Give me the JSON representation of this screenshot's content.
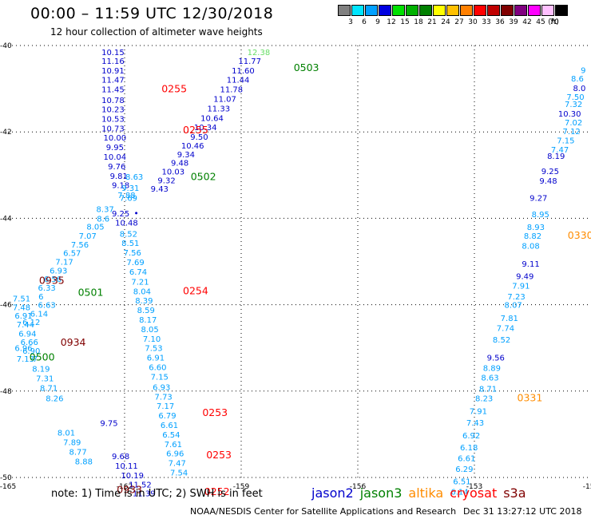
{
  "header": {
    "title": "00:00 – 11:59 UTC 12/30/2018",
    "subtitle": "12 hour collection of altimeter wave heights"
  },
  "color_scale": {
    "unit": "(ft)",
    "steps": [
      {
        "label": "3",
        "color": "#808080"
      },
      {
        "label": "6",
        "color": "#00e5ff"
      },
      {
        "label": "9",
        "color": "#00a0ff"
      },
      {
        "label": "12",
        "color": "#0000e0"
      },
      {
        "label": "15",
        "color": "#00e000"
      },
      {
        "label": "18",
        "color": "#00b000"
      },
      {
        "label": "21",
        "color": "#008000"
      },
      {
        "label": "24",
        "color": "#ffff00"
      },
      {
        "label": "27",
        "color": "#ffc000"
      },
      {
        "label": "30",
        "color": "#ff8000"
      },
      {
        "label": "33",
        "color": "#ff0000"
      },
      {
        "label": "36",
        "color": "#c00000"
      },
      {
        "label": "39",
        "color": "#800000"
      },
      {
        "label": "42",
        "color": "#800080"
      },
      {
        "label": "45",
        "color": "#ff00ff"
      },
      {
        "label": "70",
        "color": "#ffc0ff"
      },
      {
        "label": "",
        "color": "#000000"
      }
    ]
  },
  "footer": {
    "note": "note: 1) Time is in UTC; 2) SWH is in feet",
    "credit": "NOAA/NESDIS Center for Satellite Applications and Research",
    "timestamp": "Dec 31 13:27:12 UTC 2018",
    "satellites": [
      {
        "name": "jason2",
        "color": "#0000cc"
      },
      {
        "name": "jason3",
        "color": "#008000"
      },
      {
        "name": "altika",
        "color": "#ff8c00"
      },
      {
        "name": "cryosat",
        "color": "#ff0000"
      },
      {
        "name": "s3a",
        "color": "#800000"
      }
    ]
  },
  "chart_data": {
    "type": "scatter",
    "xlim": [
      -165,
      -150
    ],
    "ylim": [
      -50,
      -40
    ],
    "x_ticks": [
      "-165",
      "-162",
      "-159",
      "-156",
      "-153",
      "-150"
    ],
    "y_ticks": [
      "-40",
      "-42",
      "-44",
      "-46",
      "-48",
      "-50"
    ],
    "grid": true,
    "colors": {
      "jason2": "#0000cc",
      "jason3": "#008000",
      "altika": "#ff8c00",
      "cryosat": "#ff0000",
      "s3a": "#800000",
      "light": "#00a0ff",
      "pale": "#66dd66"
    },
    "points": [
      {
        "lon": -162.3,
        "lat": -40.15,
        "v": "10.15",
        "c": "jason2"
      },
      {
        "lon": -162.3,
        "lat": -40.35,
        "v": "11.16",
        "c": "jason2"
      },
      {
        "lon": -162.3,
        "lat": -40.57,
        "v": "10.91",
        "c": "jason2"
      },
      {
        "lon": -162.3,
        "lat": -40.79,
        "v": "11.47",
        "c": "jason2"
      },
      {
        "lon": -162.3,
        "lat": -41.01,
        "v": "11.45",
        "c": "jason2"
      },
      {
        "lon": -162.3,
        "lat": -41.26,
        "v": "10.78",
        "c": "jason2"
      },
      {
        "lon": -162.3,
        "lat": -41.47,
        "v": "10.23",
        "c": "jason2"
      },
      {
        "lon": -162.3,
        "lat": -41.69,
        "v": "10.53",
        "c": "jason2"
      },
      {
        "lon": -162.3,
        "lat": -41.91,
        "v": "10.73",
        "c": "jason2"
      },
      {
        "lon": -162.25,
        "lat": -42.13,
        "v": "10.00",
        "c": "jason2"
      },
      {
        "lon": -162.25,
        "lat": -42.35,
        "v": "9.95",
        "c": "jason2"
      },
      {
        "lon": -162.25,
        "lat": -42.57,
        "v": "10.04",
        "c": "jason2"
      },
      {
        "lon": -162.2,
        "lat": -42.79,
        "v": "9.76",
        "c": "jason2"
      },
      {
        "lon": -162.15,
        "lat": -43.01,
        "v": "9.81",
        "c": "jason2"
      },
      {
        "lon": -162.1,
        "lat": -43.23,
        "v": "9.18",
        "c": "jason2"
      },
      {
        "lon": -162.1,
        "lat": -43.88,
        "v": "9.25",
        "c": "jason2"
      },
      {
        "lon": -161.95,
        "lat": -44.09,
        "v": "10.48",
        "c": "jason2"
      },
      {
        "lon": -158.78,
        "lat": -40.35,
        "v": "11.77",
        "c": "jason2"
      },
      {
        "lon": -158.95,
        "lat": -40.57,
        "v": "11.60",
        "c": "jason2"
      },
      {
        "lon": -159.08,
        "lat": -40.79,
        "v": "11.44",
        "c": "jason2"
      },
      {
        "lon": -159.25,
        "lat": -41.01,
        "v": "11.78",
        "c": "jason2"
      },
      {
        "lon": -159.42,
        "lat": -41.23,
        "v": "11.07",
        "c": "jason2"
      },
      {
        "lon": -159.58,
        "lat": -41.45,
        "v": "11.33",
        "c": "jason2"
      },
      {
        "lon": -159.75,
        "lat": -41.67,
        "v": "10.64",
        "c": "jason2"
      },
      {
        "lon": -159.92,
        "lat": -41.89,
        "v": "10.34",
        "c": "jason2"
      },
      {
        "lon": -160.08,
        "lat": -42.11,
        "v": "9.50",
        "c": "jason2"
      },
      {
        "lon": -160.25,
        "lat": -42.31,
        "v": "10.46",
        "c": "jason2"
      },
      {
        "lon": -160.42,
        "lat": -42.51,
        "v": "9.34",
        "c": "jason2"
      },
      {
        "lon": -160.58,
        "lat": -42.71,
        "v": "9.48",
        "c": "jason2"
      },
      {
        "lon": -160.75,
        "lat": -42.91,
        "v": "10.03",
        "c": "jason2"
      },
      {
        "lon": -160.92,
        "lat": -43.11,
        "v": "9.32",
        "c": "jason2"
      },
      {
        "lon": -161.1,
        "lat": -43.31,
        "v": "9.43",
        "c": "jason2"
      },
      {
        "lon": -161.7,
        "lat": -43.88,
        "v": "",
        "c": "jason2"
      },
      {
        "lon": -162.4,
        "lat": -48.73,
        "v": "9.75",
        "c": "jason2"
      },
      {
        "lon": -162.1,
        "lat": -49.5,
        "v": "9.68",
        "c": "jason2"
      },
      {
        "lon": -161.95,
        "lat": -49.72,
        "v": "10.11",
        "c": "jason2"
      },
      {
        "lon": -161.8,
        "lat": -49.94,
        "v": "10.19",
        "c": "jason2"
      },
      {
        "lon": -161.6,
        "lat": -50.16,
        "v": "11.52",
        "c": "jason2"
      },
      {
        "lon": -161.5,
        "lat": -50.36,
        "v": "11.39",
        "c": "jason2"
      },
      {
        "lon": -150.3,
        "lat": -40.98,
        "v": "8.0",
        "c": "jason2"
      },
      {
        "lon": -150.55,
        "lat": -41.57,
        "v": "10.30",
        "c": "jason2"
      },
      {
        "lon": -150.9,
        "lat": -42.55,
        "v": "8.19",
        "c": "jason2"
      },
      {
        "lon": -151.05,
        "lat": -42.9,
        "v": "9.25",
        "c": "jason2"
      },
      {
        "lon": -151.1,
        "lat": -43.12,
        "v": "9.48",
        "c": "jason2"
      },
      {
        "lon": -151.35,
        "lat": -43.52,
        "v": "9.27",
        "c": "jason2"
      },
      {
        "lon": -151.55,
        "lat": -45.05,
        "v": "9.11",
        "c": "jason2"
      },
      {
        "lon": -151.7,
        "lat": -45.33,
        "v": "9.49",
        "c": "jason2"
      },
      {
        "lon": -152.45,
        "lat": -47.22,
        "v": "9.56",
        "c": "jason2"
      },
      {
        "lon": -161.9,
        "lat": -44.35,
        "v": "8.52",
        "c": "light"
      },
      {
        "lon": -161.85,
        "lat": -44.57,
        "v": "8.51",
        "c": "light"
      },
      {
        "lon": -161.8,
        "lat": -44.79,
        "v": "7.56",
        "c": "light"
      },
      {
        "lon": -161.72,
        "lat": -45.01,
        "v": "7.69",
        "c": "light"
      },
      {
        "lon": -161.65,
        "lat": -45.23,
        "v": "6.74",
        "c": "light"
      },
      {
        "lon": -161.6,
        "lat": -45.46,
        "v": "7.21",
        "c": "light"
      },
      {
        "lon": -161.55,
        "lat": -45.68,
        "v": "8.04",
        "c": "light"
      },
      {
        "lon": -161.5,
        "lat": -45.9,
        "v": "8.39",
        "c": "light"
      },
      {
        "lon": -161.45,
        "lat": -46.12,
        "v": "8.59",
        "c": "light"
      },
      {
        "lon": -161.4,
        "lat": -46.34,
        "v": "8.17",
        "c": "light"
      },
      {
        "lon": -161.35,
        "lat": -46.56,
        "v": "8.05",
        "c": "light"
      },
      {
        "lon": -161.3,
        "lat": -46.78,
        "v": "7.10",
        "c": "light"
      },
      {
        "lon": -161.25,
        "lat": -47.0,
        "v": "7.53",
        "c": "light"
      },
      {
        "lon": -161.2,
        "lat": -47.22,
        "v": "6.91",
        "c": "light"
      },
      {
        "lon": -161.15,
        "lat": -47.44,
        "v": "6.60",
        "c": "light"
      },
      {
        "lon": -161.1,
        "lat": -47.66,
        "v": "7.15",
        "c": "light"
      },
      {
        "lon": -161.05,
        "lat": -47.9,
        "v": "6.93",
        "c": "light"
      },
      {
        "lon": -161.0,
        "lat": -48.12,
        "v": "7.73",
        "c": "light"
      },
      {
        "lon": -160.95,
        "lat": -48.34,
        "v": "7.17",
        "c": "light"
      },
      {
        "lon": -160.9,
        "lat": -48.56,
        "v": "6.79",
        "c": "light"
      },
      {
        "lon": -160.85,
        "lat": -48.78,
        "v": "6.61",
        "c": "light"
      },
      {
        "lon": -160.8,
        "lat": -49.0,
        "v": "6.54",
        "c": "light"
      },
      {
        "lon": -160.75,
        "lat": -49.22,
        "v": "7.61",
        "c": "light"
      },
      {
        "lon": -160.7,
        "lat": -49.44,
        "v": "6.96",
        "c": "light"
      },
      {
        "lon": -160.65,
        "lat": -49.66,
        "v": "7.47",
        "c": "light"
      },
      {
        "lon": -160.6,
        "lat": -49.88,
        "v": "7.54",
        "c": "light"
      },
      {
        "lon": -162.5,
        "lat": -43.78,
        "v": "8.37",
        "c": "light"
      },
      {
        "lon": -162.55,
        "lat": -44.0,
        "v": "8.6",
        "c": "light"
      },
      {
        "lon": -162.75,
        "lat": -44.19,
        "v": "8.05",
        "c": "light"
      },
      {
        "lon": -162.95,
        "lat": -44.4,
        "v": "7.07",
        "c": "light"
      },
      {
        "lon": -163.15,
        "lat": -44.6,
        "v": "7.56",
        "c": "light"
      },
      {
        "lon": -163.35,
        "lat": -44.8,
        "v": "6.57",
        "c": "light"
      },
      {
        "lon": -163.55,
        "lat": -45.0,
        "v": "7.17",
        "c": "light"
      },
      {
        "lon": -163.7,
        "lat": -45.2,
        "v": "6.93",
        "c": "light"
      },
      {
        "lon": -163.85,
        "lat": -45.4,
        "v": "6.56",
        "c": "light"
      },
      {
        "lon": -164.0,
        "lat": -45.6,
        "v": "6.33",
        "c": "light"
      },
      {
        "lon": -164.15,
        "lat": -45.8,
        "v": "6",
        "c": "light"
      },
      {
        "lon": -164.0,
        "lat": -46.0,
        "v": "6.63",
        "c": "light"
      },
      {
        "lon": -164.2,
        "lat": -46.2,
        "v": "6.14",
        "c": "light"
      },
      {
        "lon": -164.4,
        "lat": -46.4,
        "v": "6.12",
        "c": "light"
      },
      {
        "lon": -164.65,
        "lat": -45.85,
        "v": "7.51",
        "c": "light"
      },
      {
        "lon": -164.65,
        "lat": -46.05,
        "v": "7.48",
        "c": "light"
      },
      {
        "lon": -164.6,
        "lat": -46.25,
        "v": "6.91",
        "c": "light"
      },
      {
        "lon": -164.55,
        "lat": -46.45,
        "v": "7.44",
        "c": "light"
      },
      {
        "lon": -164.5,
        "lat": -46.66,
        "v": "6.94",
        "c": "light"
      },
      {
        "lon": -164.45,
        "lat": -46.86,
        "v": "6.66",
        "c": "light"
      },
      {
        "lon": -164.4,
        "lat": -47.06,
        "v": "6.90",
        "c": "light"
      },
      {
        "lon": -164.6,
        "lat": -47.0,
        "v": "6.96",
        "c": "light"
      },
      {
        "lon": -164.55,
        "lat": -47.25,
        "v": "7.13",
        "c": "light"
      },
      {
        "lon": -164.3,
        "lat": -47.25,
        "v": "7",
        "c": "light"
      },
      {
        "lon": -164.15,
        "lat": -47.48,
        "v": "8.19",
        "c": "light"
      },
      {
        "lon": -164.05,
        "lat": -47.7,
        "v": "7.31",
        "c": "light"
      },
      {
        "lon": -163.95,
        "lat": -47.92,
        "v": "8.71",
        "c": "light"
      },
      {
        "lon": -163.8,
        "lat": -48.16,
        "v": "8.26",
        "c": "light"
      },
      {
        "lon": -163.5,
        "lat": -48.96,
        "v": "8.01",
        "c": "light"
      },
      {
        "lon": -163.35,
        "lat": -49.18,
        "v": "7.89",
        "c": "light"
      },
      {
        "lon": -163.2,
        "lat": -49.4,
        "v": "8.77",
        "c": "light"
      },
      {
        "lon": -163.05,
        "lat": -49.62,
        "v": "8.88",
        "c": "light"
      },
      {
        "lon": -150.45,
        "lat": -41.77,
        "v": "7.02",
        "c": "light"
      },
      {
        "lon": -150.5,
        "lat": -41.98,
        "v": "7.12",
        "c": "light"
      },
      {
        "lon": -150.65,
        "lat": -42.19,
        "v": "7.15",
        "c": "light"
      },
      {
        "lon": -150.8,
        "lat": -42.4,
        "v": "7.47",
        "c": "light"
      },
      {
        "lon": -151.3,
        "lat": -43.9,
        "v": "8.95",
        "c": "light"
      },
      {
        "lon": -151.42,
        "lat": -44.2,
        "v": "8.93",
        "c": "light"
      },
      {
        "lon": -151.5,
        "lat": -44.4,
        "v": "8.82",
        "c": "light"
      },
      {
        "lon": -151.55,
        "lat": -44.63,
        "v": "8.08",
        "c": "light"
      },
      {
        "lon": -151.8,
        "lat": -45.55,
        "v": "7.91",
        "c": "light"
      },
      {
        "lon": -151.92,
        "lat": -45.8,
        "v": "7.23",
        "c": "light"
      },
      {
        "lon": -152.0,
        "lat": -46.0,
        "v": "8.07",
        "c": "light"
      },
      {
        "lon": -152.1,
        "lat": -46.3,
        "v": "7.81",
        "c": "light"
      },
      {
        "lon": -152.2,
        "lat": -46.53,
        "v": "7.74",
        "c": "light"
      },
      {
        "lon": -152.3,
        "lat": -46.8,
        "v": "8.52",
        "c": "light"
      },
      {
        "lon": -152.55,
        "lat": -47.46,
        "v": "8.89",
        "c": "light"
      },
      {
        "lon": -152.6,
        "lat": -47.68,
        "v": "8.63",
        "c": "light"
      },
      {
        "lon": -152.65,
        "lat": -47.94,
        "v": "8.71",
        "c": "light"
      },
      {
        "lon": -152.75,
        "lat": -48.16,
        "v": "8.23",
        "c": "light"
      },
      {
        "lon": -152.9,
        "lat": -48.46,
        "v": "7.91",
        "c": "light"
      },
      {
        "lon": -152.98,
        "lat": -48.72,
        "v": "7.43",
        "c": "light"
      },
      {
        "lon": -153.08,
        "lat": -49.02,
        "v": "6.92",
        "c": "light"
      },
      {
        "lon": -153.14,
        "lat": -49.3,
        "v": "6.18",
        "c": "light"
      },
      {
        "lon": -153.2,
        "lat": -49.55,
        "v": "6.61",
        "c": "light"
      },
      {
        "lon": -153.26,
        "lat": -49.8,
        "v": "6.29",
        "c": "light"
      },
      {
        "lon": -153.32,
        "lat": -50.08,
        "v": "6.51",
        "c": "light"
      },
      {
        "lon": -153.38,
        "lat": -50.32,
        "v": "6.14",
        "c": "light"
      },
      {
        "lon": -150.2,
        "lat": -40.56,
        "v": "9",
        "c": "light"
      },
      {
        "lon": -150.35,
        "lat": -40.76,
        "v": "8.6",
        "c": "light"
      },
      {
        "lon": -150.4,
        "lat": -41.18,
        "v": "7.50",
        "c": "light"
      },
      {
        "lon": -150.45,
        "lat": -41.35,
        "v": "7.32",
        "c": "light"
      },
      {
        "lon": -161.75,
        "lat": -43.03,
        "v": "8.63",
        "c": "light"
      },
      {
        "lon": -161.85,
        "lat": -43.29,
        "v": "9.31",
        "c": "light"
      },
      {
        "lon": -161.9,
        "lat": -43.52,
        "v": "7.69",
        "c": "light"
      },
      {
        "lon": -161.95,
        "lat": -43.46,
        "v": "7.88",
        "c": "light"
      },
      {
        "lon": -158.55,
        "lat": -40.15,
        "v": "12.38",
        "c": "pale"
      },
      {
        "lon": -161.05,
        "lat": -41.01,
        "v": "0255",
        "c": "cryosat",
        "big": true
      },
      {
        "lon": -160.5,
        "lat": -41.96,
        "v": "0255",
        "c": "cryosat",
        "big": true
      },
      {
        "lon": -160.5,
        "lat": -45.68,
        "v": "0254",
        "c": "cryosat",
        "big": true
      },
      {
        "lon": -160.0,
        "lat": -48.5,
        "v": "0253",
        "c": "cryosat",
        "big": true
      },
      {
        "lon": -159.9,
        "lat": -49.48,
        "v": "0253",
        "c": "cryosat",
        "big": true
      },
      {
        "lon": -159.95,
        "lat": -50.33,
        "v": "0252",
        "c": "cryosat",
        "big": true
      },
      {
        "lon": -157.65,
        "lat": -40.52,
        "v": "0503",
        "c": "jason3",
        "big": true
      },
      {
        "lon": -160.3,
        "lat": -43.04,
        "v": "0502",
        "c": "jason3",
        "big": true
      },
      {
        "lon": -163.2,
        "lat": -45.72,
        "v": "0501",
        "c": "jason3",
        "big": true
      },
      {
        "lon": -164.45,
        "lat": -47.22,
        "v": "0500",
        "c": "jason3",
        "big": true
      },
      {
        "lon": -164.2,
        "lat": -45.44,
        "v": "0935",
        "c": "s3a",
        "big": true
      },
      {
        "lon": -163.65,
        "lat": -46.88,
        "v": "0934",
        "c": "s3a",
        "big": true
      },
      {
        "lon": -162.2,
        "lat": -50.29,
        "v": "0933",
        "c": "s3a",
        "big": true
      },
      {
        "lon": -150.6,
        "lat": -44.4,
        "v": "0330",
        "c": "altika",
        "big": true
      },
      {
        "lon": -151.9,
        "lat": -48.16,
        "v": "0331",
        "c": "altika",
        "big": true
      }
    ]
  }
}
